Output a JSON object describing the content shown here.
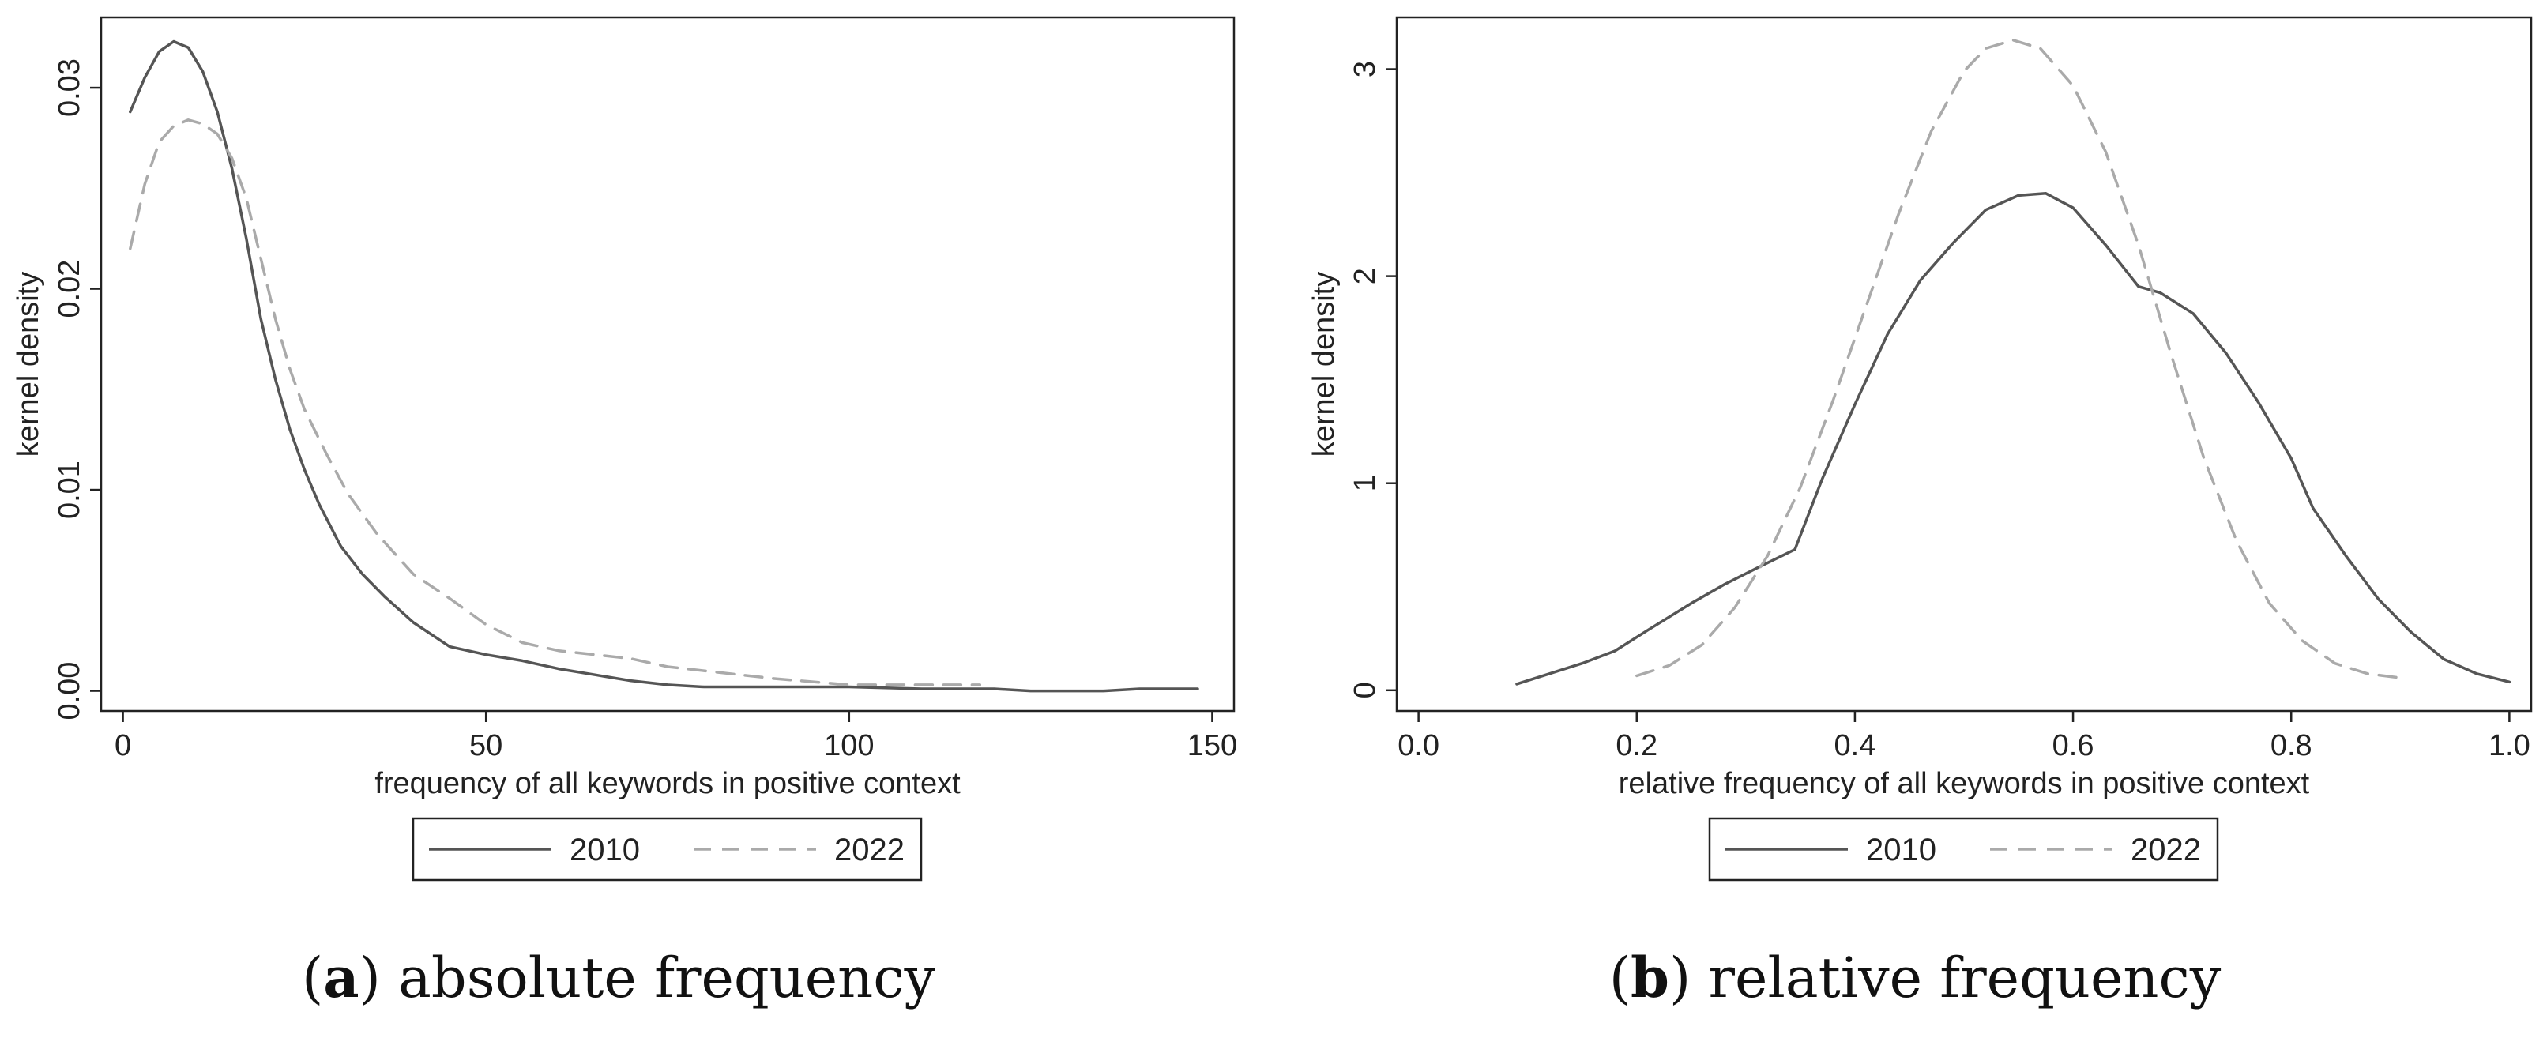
{
  "chart_data": [
    {
      "type": "line",
      "caption_letter": "a",
      "caption_text": "absolute frequency",
      "xlabel": "frequency of all keywords in positive context",
      "ylabel": "kernel density",
      "xlim": [
        -3,
        153
      ],
      "ylim": [
        -0.001,
        0.0335
      ],
      "xticks": [
        0,
        50,
        100,
        150
      ],
      "xtick_labels": [
        "0",
        "50",
        "100",
        "150"
      ],
      "yticks": [
        0,
        0.01,
        0.02,
        0.03
      ],
      "ytick_labels": [
        "0.00",
        "0.01",
        "0.02",
        "0.03"
      ],
      "grid": false,
      "legend_position": "bottom",
      "series": [
        {
          "name": "2010",
          "style": "solid",
          "color": "#555555",
          "x": [
            1,
            3,
            5,
            7,
            9,
            11,
            13,
            15,
            17,
            19,
            21,
            23,
            25,
            27,
            30,
            33,
            36,
            40,
            45,
            50,
            55,
            60,
            65,
            70,
            75,
            80,
            90,
            100,
            110,
            120,
            125,
            130,
            135,
            140,
            148
          ],
          "y": [
            0.0288,
            0.0305,
            0.0318,
            0.0323,
            0.032,
            0.0308,
            0.0288,
            0.026,
            0.0225,
            0.0185,
            0.0155,
            0.013,
            0.011,
            0.0093,
            0.0072,
            0.0058,
            0.0047,
            0.0034,
            0.0022,
            0.0018,
            0.0015,
            0.0011,
            0.0008,
            0.0005,
            0.0003,
            0.0002,
            0.0002,
            0.0002,
            0.0001,
            0.0001,
            0.0,
            0.0,
            0.0,
            0.0001,
            0.0001
          ]
        },
        {
          "name": "2022",
          "style": "dashed",
          "color": "#aaaaaa",
          "x": [
            1,
            3,
            5,
            7,
            9,
            11,
            13,
            15,
            17,
            19,
            21,
            23,
            25,
            28,
            31,
            35,
            40,
            45,
            50,
            55,
            60,
            65,
            70,
            75,
            80,
            90,
            100,
            110,
            118
          ],
          "y": [
            0.022,
            0.0252,
            0.0273,
            0.0281,
            0.0284,
            0.0282,
            0.0277,
            0.0265,
            0.0245,
            0.0215,
            0.0185,
            0.016,
            0.014,
            0.0118,
            0.0098,
            0.0078,
            0.0058,
            0.0046,
            0.0033,
            0.0024,
            0.002,
            0.0018,
            0.0016,
            0.0012,
            0.001,
            0.0006,
            0.0003,
            0.0003,
            0.0003
          ]
        }
      ]
    },
    {
      "type": "line",
      "caption_letter": "b",
      "caption_text": "relative frequency",
      "xlabel": "relative frequency of all keywords in positive context",
      "ylabel": "kernel density",
      "xlim": [
        -0.02,
        1.02
      ],
      "ylim": [
        -0.1,
        3.25
      ],
      "xticks": [
        0,
        0.2,
        0.4,
        0.6,
        0.8,
        1.0
      ],
      "xtick_labels": [
        "0.0",
        "0.2",
        "0.4",
        "0.6",
        "0.8",
        "1.0"
      ],
      "yticks": [
        0,
        1,
        2,
        3
      ],
      "ytick_labels": [
        "0",
        "1",
        "2",
        "3"
      ],
      "grid": false,
      "legend_position": "bottom",
      "series": [
        {
          "name": "2010",
          "style": "solid",
          "color": "#555555",
          "x": [
            0.09,
            0.12,
            0.15,
            0.18,
            0.21,
            0.25,
            0.28,
            0.31,
            0.345,
            0.37,
            0.4,
            0.43,
            0.46,
            0.49,
            0.52,
            0.55,
            0.575,
            0.6,
            0.63,
            0.66,
            0.68,
            0.71,
            0.74,
            0.77,
            0.8,
            0.82,
            0.85,
            0.88,
            0.91,
            0.94,
            0.97,
            1.0
          ],
          "y": [
            0.03,
            0.08,
            0.13,
            0.19,
            0.29,
            0.42,
            0.51,
            0.59,
            0.68,
            1.02,
            1.38,
            1.72,
            1.98,
            2.16,
            2.32,
            2.39,
            2.4,
            2.33,
            2.15,
            1.95,
            1.92,
            1.82,
            1.63,
            1.39,
            1.12,
            0.88,
            0.65,
            0.44,
            0.28,
            0.15,
            0.08,
            0.04
          ]
        },
        {
          "name": "2022",
          "style": "dashed",
          "color": "#aaaaaa",
          "x": [
            0.2,
            0.23,
            0.26,
            0.29,
            0.32,
            0.35,
            0.38,
            0.41,
            0.44,
            0.47,
            0.5,
            0.52,
            0.545,
            0.57,
            0.6,
            0.63,
            0.66,
            0.69,
            0.72,
            0.75,
            0.78,
            0.81,
            0.84,
            0.87,
            0.9
          ],
          "y": [
            0.07,
            0.12,
            0.22,
            0.4,
            0.65,
            0.98,
            1.4,
            1.85,
            2.3,
            2.7,
            2.99,
            3.1,
            3.14,
            3.1,
            2.92,
            2.6,
            2.15,
            1.62,
            1.12,
            0.72,
            0.42,
            0.24,
            0.13,
            0.08,
            0.06
          ]
        }
      ]
    }
  ]
}
